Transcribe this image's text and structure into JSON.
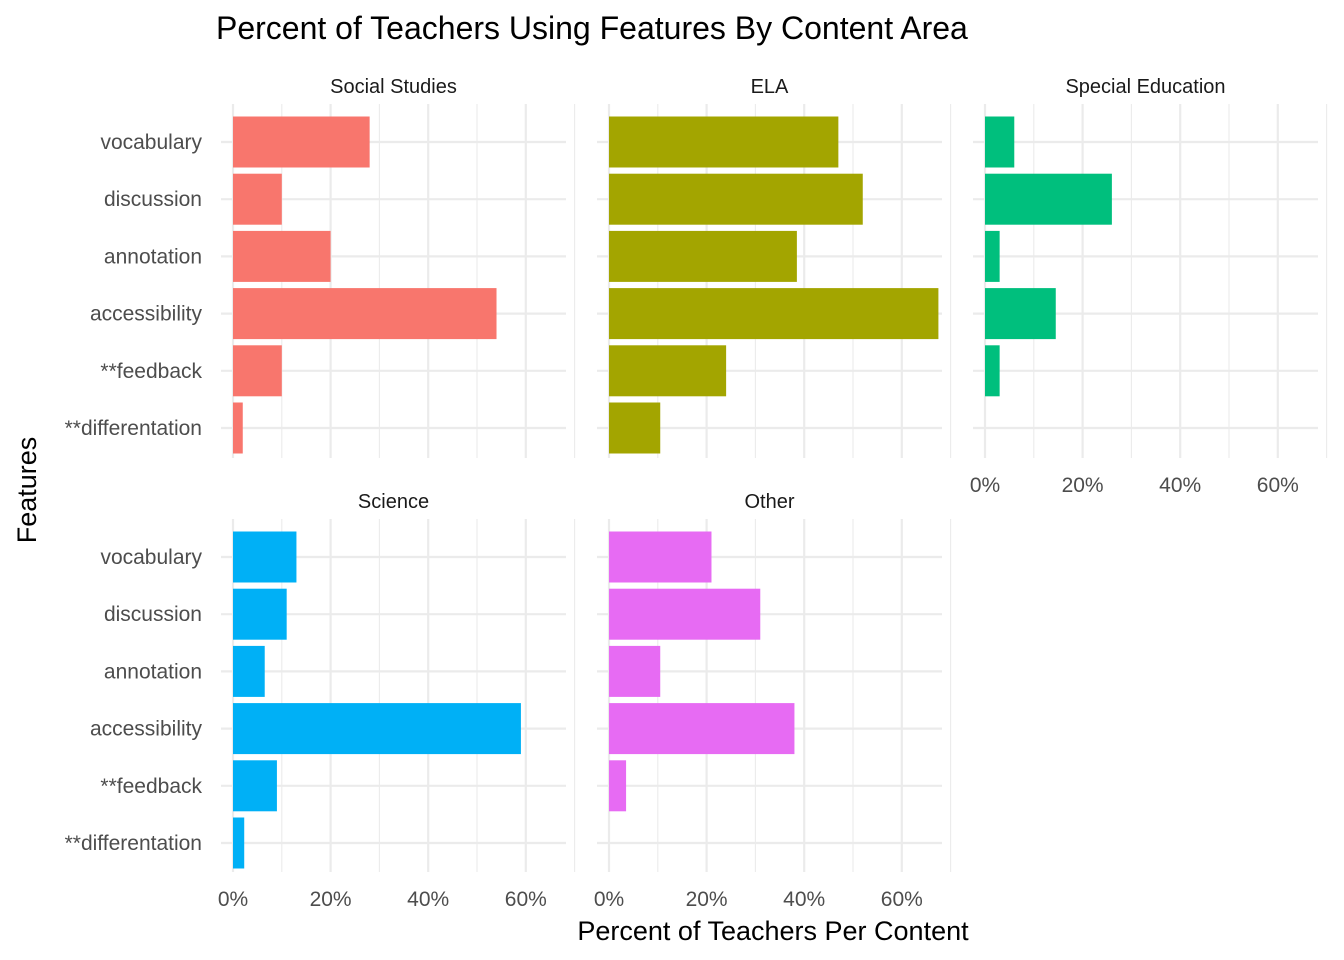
{
  "chart_data": {
    "type": "bar",
    "orientation": "horizontal",
    "title": "Percent of Teachers Using Features By Content Area",
    "xlabel": "Percent of Teachers Per Content",
    "ylabel": "Features",
    "categories": [
      "vocabulary",
      "discussion",
      "annotation",
      "accessibility",
      "**feedback",
      "**differentation"
    ],
    "x_ticks": [
      "0%",
      "20%",
      "40%",
      "60%"
    ],
    "xlim": [
      0,
      70
    ],
    "grid": true,
    "legend": "none",
    "panels": [
      {
        "name": "Social Studies",
        "color": "#F8766D",
        "values": [
          28,
          10,
          20,
          54,
          10,
          2
        ]
      },
      {
        "name": "ELA",
        "color": "#A3A500",
        "values": [
          47,
          52,
          38.5,
          67.5,
          24,
          10.5
        ]
      },
      {
        "name": "Special Education",
        "color": "#00BF7D",
        "values": [
          6,
          26,
          3,
          14.5,
          3,
          0
        ]
      },
      {
        "name": "Science",
        "color": "#00B0F6",
        "values": [
          13,
          11,
          6.5,
          59,
          9,
          2.3
        ]
      },
      {
        "name": "Other",
        "color": "#E76BF3",
        "values": [
          21,
          31,
          10.5,
          38,
          3.5,
          0
        ]
      }
    ]
  }
}
